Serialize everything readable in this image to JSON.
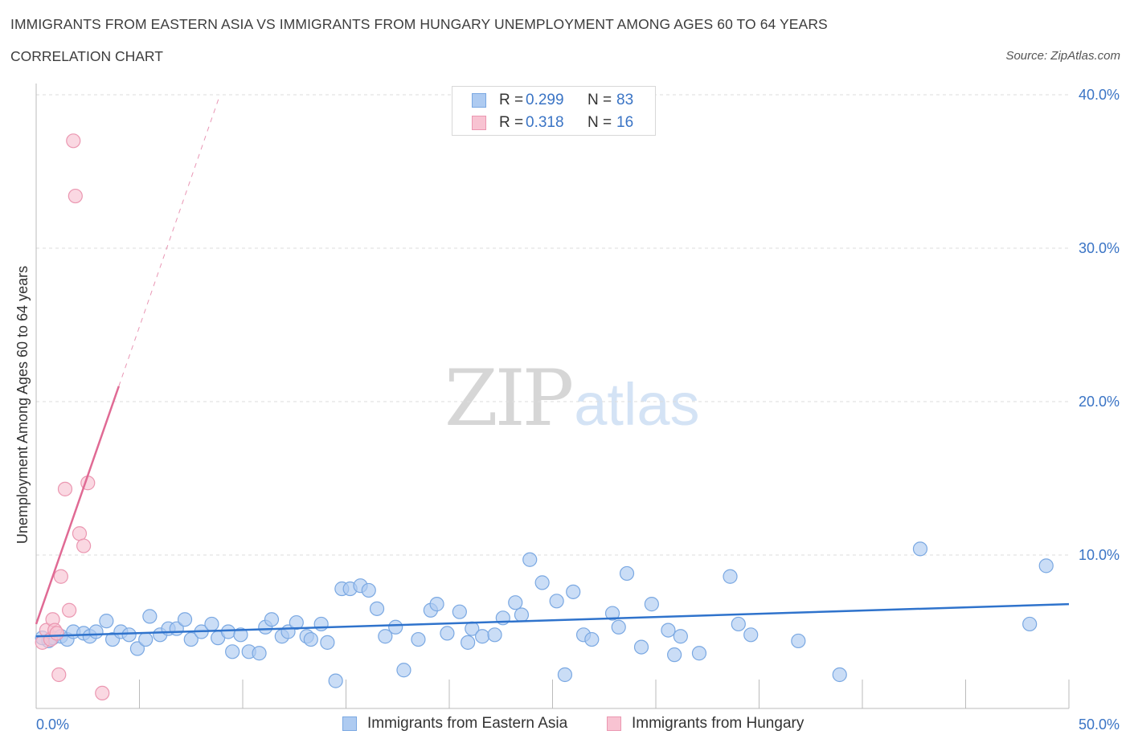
{
  "header": {
    "title": "IMMIGRANTS FROM EASTERN ASIA VS IMMIGRANTS FROM HUNGARY UNEMPLOYMENT AMONG AGES 60 TO 64 YEARS",
    "subtitle": "CORRELATION CHART",
    "source": "Source: ZipAtlas.com"
  },
  "watermark": {
    "zip": "ZIP",
    "atlas": "atlas"
  },
  "stats_legend": {
    "rows": [
      {
        "r_label": "R =",
        "r_value": "0.299",
        "n_label": "N =",
        "n_value": "83"
      },
      {
        "r_label": "R =",
        "r_value": "0.318",
        "n_label": "N =",
        "n_value": "16"
      }
    ]
  },
  "colors": {
    "blue_fill": "#aecbf1",
    "blue_stroke": "#7aa8e2",
    "blue_line": "#2f73cc",
    "pink_fill": "#f8c3d2",
    "pink_stroke": "#eb97b1",
    "pink_line": "#e06a94",
    "grid": "#dddddd",
    "tick_label": "#3a74c5"
  },
  "chart_data": {
    "type": "scatter",
    "title": "IMMIGRANTS FROM EASTERN ASIA VS IMMIGRANTS FROM HUNGARY UNEMPLOYMENT AMONG AGES 60 TO 64 YEARS",
    "xlabel": "",
    "ylabel": "Unemployment Among Ages 60 to 64 years",
    "xlim": [
      0,
      50
    ],
    "ylim": [
      0,
      40
    ],
    "x_tick_labels": [
      "0.0%",
      "50.0%"
    ],
    "y_ticks": [
      10,
      20,
      30,
      40
    ],
    "y_tick_labels": [
      "10.0%",
      "20.0%",
      "30.0%",
      "40.0%"
    ],
    "grid": true,
    "legend_position": "bottom-center",
    "series": [
      {
        "name": "Immigrants from Eastern Asia",
        "color": "#aecbf1",
        "R": 0.299,
        "N": 83,
        "trend": {
          "x0": 0,
          "y0": 4.7,
          "x1": 50,
          "y1": 6.8
        },
        "points": [
          [
            0.6,
            4.4
          ],
          [
            0.8,
            4.6
          ],
          [
            1.2,
            4.7
          ],
          [
            1.5,
            4.5
          ],
          [
            1.8,
            5.0
          ],
          [
            2.3,
            4.9
          ],
          [
            2.6,
            4.7
          ],
          [
            2.9,
            5.0
          ],
          [
            3.4,
            5.7
          ],
          [
            3.7,
            4.5
          ],
          [
            4.1,
            5.0
          ],
          [
            4.5,
            4.8
          ],
          [
            4.9,
            3.9
          ],
          [
            5.3,
            4.5
          ],
          [
            5.5,
            6.0
          ],
          [
            6.0,
            4.8
          ],
          [
            6.4,
            5.2
          ],
          [
            6.8,
            5.2
          ],
          [
            7.2,
            5.8
          ],
          [
            7.5,
            4.5
          ],
          [
            8.0,
            5.0
          ],
          [
            8.5,
            5.5
          ],
          [
            8.8,
            4.6
          ],
          [
            9.3,
            5.0
          ],
          [
            9.5,
            3.7
          ],
          [
            9.9,
            4.8
          ],
          [
            10.3,
            3.7
          ],
          [
            10.8,
            3.6
          ],
          [
            11.1,
            5.3
          ],
          [
            11.4,
            5.8
          ],
          [
            11.9,
            4.7
          ],
          [
            12.2,
            5.0
          ],
          [
            12.6,
            5.6
          ],
          [
            13.1,
            4.7
          ],
          [
            13.3,
            4.5
          ],
          [
            13.8,
            5.5
          ],
          [
            14.1,
            4.3
          ],
          [
            14.5,
            1.8
          ],
          [
            14.8,
            7.8
          ],
          [
            15.2,
            7.8
          ],
          [
            15.7,
            8.0
          ],
          [
            16.1,
            7.7
          ],
          [
            16.5,
            6.5
          ],
          [
            16.9,
            4.7
          ],
          [
            17.4,
            5.3
          ],
          [
            17.8,
            2.5
          ],
          [
            18.5,
            4.5
          ],
          [
            19.1,
            6.4
          ],
          [
            19.4,
            6.8
          ],
          [
            19.9,
            4.9
          ],
          [
            20.5,
            6.3
          ],
          [
            20.9,
            4.3
          ],
          [
            21.1,
            5.2
          ],
          [
            21.6,
            4.7
          ],
          [
            22.2,
            4.8
          ],
          [
            22.6,
            5.9
          ],
          [
            23.2,
            6.9
          ],
          [
            23.5,
            6.1
          ],
          [
            23.9,
            9.7
          ],
          [
            24.5,
            8.2
          ],
          [
            25.2,
            7.0
          ],
          [
            25.6,
            2.2
          ],
          [
            26.0,
            7.6
          ],
          [
            26.5,
            4.8
          ],
          [
            26.9,
            4.5
          ],
          [
            27.9,
            6.2
          ],
          [
            28.2,
            5.3
          ],
          [
            28.6,
            8.8
          ],
          [
            29.3,
            4.0
          ],
          [
            29.8,
            6.8
          ],
          [
            30.6,
            5.1
          ],
          [
            30.9,
            3.5
          ],
          [
            31.2,
            4.7
          ],
          [
            32.1,
            3.6
          ],
          [
            33.6,
            8.6
          ],
          [
            34.0,
            5.5
          ],
          [
            34.6,
            4.8
          ],
          [
            36.9,
            4.4
          ],
          [
            38.9,
            2.2
          ],
          [
            42.8,
            10.4
          ],
          [
            48.1,
            5.5
          ],
          [
            48.9,
            9.3
          ],
          [
            0.3,
            4.6
          ]
        ]
      },
      {
        "name": "Immigrants from Hungary",
        "color": "#f8c3d2",
        "R": 0.318,
        "N": 16,
        "trend_solid": {
          "x0": 0,
          "y0": 5.5,
          "x1": 4.0,
          "y1": 21.0
        },
        "trend_dashed": {
          "x0": 4.0,
          "y0": 21.0,
          "x1": 8.9,
          "y1": 40.0
        },
        "points": [
          [
            0.3,
            4.3
          ],
          [
            0.5,
            5.1
          ],
          [
            0.7,
            4.5
          ],
          [
            0.8,
            5.8
          ],
          [
            0.9,
            5.1
          ],
          [
            1.0,
            4.9
          ],
          [
            1.1,
            2.2
          ],
          [
            1.2,
            8.6
          ],
          [
            1.4,
            14.3
          ],
          [
            1.8,
            37.0
          ],
          [
            1.9,
            33.4
          ],
          [
            2.1,
            11.4
          ],
          [
            2.3,
            10.6
          ],
          [
            2.5,
            14.7
          ],
          [
            1.6,
            6.4
          ],
          [
            3.2,
            1.0
          ]
        ]
      }
    ]
  },
  "bottom_legend": {
    "items": [
      {
        "label": "Immigrants from Eastern Asia"
      },
      {
        "label": "Immigrants from Hungary"
      }
    ]
  }
}
